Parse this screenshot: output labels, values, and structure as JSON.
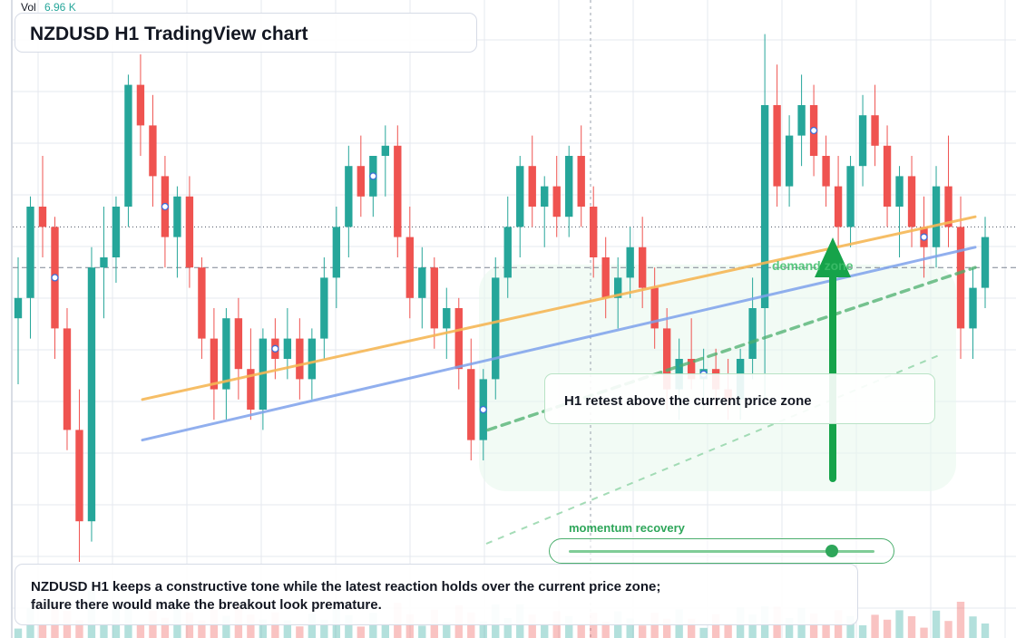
{
  "header": {
    "volume_label": "Vol",
    "volume_value": "6.96 K"
  },
  "title": "NZDUSD H1 TradingView chart",
  "annotations": {
    "retest_note": "H1 retest above the current price zone",
    "zone_label": "demand zone",
    "momentum_label": "momentum recovery",
    "summary": "NZDUSD H1 keeps a constructive tone while the latest reaction holds over the current price zone; failure there would make the breakout look premature."
  },
  "momentum_level": 0.86,
  "colors": {
    "bull": "#26a69a",
    "bear": "#ef5350",
    "trend_orange": "#f6b756",
    "trend_blue": "#7ea2ec",
    "accent_green": "#2ea65a",
    "grid": "#e6e9ef"
  },
  "icons": [
    "arrow-up-icon"
  ],
  "chart_data": {
    "type": "candlestick",
    "title": "NZDUSD H1 TradingView chart",
    "price_scale": "relative (unlabeled)",
    "ylim": [
      0,
      100
    ],
    "lines": {
      "last_price_level": 66,
      "dashed_level": 58
    },
    "candles": [
      {
        "o": 48,
        "h": 60,
        "l": 35,
        "c": 52
      },
      {
        "o": 52,
        "h": 72,
        "l": 44,
        "c": 70
      },
      {
        "o": 70,
        "h": 80,
        "l": 60,
        "c": 66
      },
      {
        "o": 66,
        "h": 68,
        "l": 40,
        "c": 46
      },
      {
        "o": 46,
        "h": 50,
        "l": 22,
        "c": 26
      },
      {
        "o": 26,
        "h": 34,
        "l": 0,
        "c": 8
      },
      {
        "o": 8,
        "h": 62,
        "l": 4,
        "c": 58
      },
      {
        "o": 58,
        "h": 70,
        "l": 48,
        "c": 60
      },
      {
        "o": 60,
        "h": 72,
        "l": 55,
        "c": 70
      },
      {
        "o": 70,
        "h": 96,
        "l": 66,
        "c": 94
      },
      {
        "o": 94,
        "h": 100,
        "l": 80,
        "c": 86
      },
      {
        "o": 86,
        "h": 92,
        "l": 70,
        "c": 76
      },
      {
        "o": 76,
        "h": 80,
        "l": 58,
        "c": 64
      },
      {
        "o": 64,
        "h": 74,
        "l": 56,
        "c": 72
      },
      {
        "o": 72,
        "h": 76,
        "l": 54,
        "c": 58
      },
      {
        "o": 58,
        "h": 60,
        "l": 40,
        "c": 44
      },
      {
        "o": 44,
        "h": 50,
        "l": 28,
        "c": 34
      },
      {
        "o": 34,
        "h": 50,
        "l": 28,
        "c": 48
      },
      {
        "o": 48,
        "h": 52,
        "l": 32,
        "c": 38
      },
      {
        "o": 38,
        "h": 46,
        "l": 28,
        "c": 30
      },
      {
        "o": 30,
        "h": 46,
        "l": 26,
        "c": 44
      },
      {
        "o": 44,
        "h": 48,
        "l": 36,
        "c": 40
      },
      {
        "o": 40,
        "h": 50,
        "l": 36,
        "c": 44
      },
      {
        "o": 44,
        "h": 48,
        "l": 32,
        "c": 36
      },
      {
        "o": 36,
        "h": 46,
        "l": 32,
        "c": 44
      },
      {
        "o": 44,
        "h": 60,
        "l": 40,
        "c": 56
      },
      {
        "o": 56,
        "h": 70,
        "l": 50,
        "c": 66
      },
      {
        "o": 66,
        "h": 82,
        "l": 60,
        "c": 78
      },
      {
        "o": 78,
        "h": 84,
        "l": 68,
        "c": 72
      },
      {
        "o": 72,
        "h": 80,
        "l": 68,
        "c": 80
      },
      {
        "o": 80,
        "h": 86,
        "l": 72,
        "c": 82
      },
      {
        "o": 82,
        "h": 86,
        "l": 60,
        "c": 64
      },
      {
        "o": 64,
        "h": 70,
        "l": 48,
        "c": 52
      },
      {
        "o": 52,
        "h": 62,
        "l": 46,
        "c": 58
      },
      {
        "o": 58,
        "h": 60,
        "l": 42,
        "c": 46
      },
      {
        "o": 46,
        "h": 54,
        "l": 40,
        "c": 50
      },
      {
        "o": 50,
        "h": 52,
        "l": 34,
        "c": 38
      },
      {
        "o": 38,
        "h": 44,
        "l": 20,
        "c": 24
      },
      {
        "o": 24,
        "h": 38,
        "l": 20,
        "c": 36
      },
      {
        "o": 36,
        "h": 60,
        "l": 32,
        "c": 56
      },
      {
        "o": 56,
        "h": 72,
        "l": 52,
        "c": 66
      },
      {
        "o": 66,
        "h": 80,
        "l": 60,
        "c": 78
      },
      {
        "o": 78,
        "h": 84,
        "l": 66,
        "c": 70
      },
      {
        "o": 70,
        "h": 76,
        "l": 62,
        "c": 74
      },
      {
        "o": 74,
        "h": 80,
        "l": 64,
        "c": 68
      },
      {
        "o": 68,
        "h": 82,
        "l": 64,
        "c": 80
      },
      {
        "o": 80,
        "h": 86,
        "l": 66,
        "c": 70
      },
      {
        "o": 70,
        "h": 74,
        "l": 56,
        "c": 60
      },
      {
        "o": 60,
        "h": 64,
        "l": 48,
        "c": 52
      },
      {
        "o": 52,
        "h": 60,
        "l": 46,
        "c": 56
      },
      {
        "o": 56,
        "h": 66,
        "l": 52,
        "c": 62
      },
      {
        "o": 62,
        "h": 68,
        "l": 50,
        "c": 54
      },
      {
        "o": 54,
        "h": 58,
        "l": 42,
        "c": 46
      },
      {
        "o": 46,
        "h": 50,
        "l": 30,
        "c": 34
      },
      {
        "o": 34,
        "h": 44,
        "l": 28,
        "c": 40
      },
      {
        "o": 40,
        "h": 48,
        "l": 34,
        "c": 36
      },
      {
        "o": 36,
        "h": 42,
        "l": 30,
        "c": 38
      },
      {
        "o": 38,
        "h": 42,
        "l": 30,
        "c": 34
      },
      {
        "o": 34,
        "h": 40,
        "l": 28,
        "c": 32
      },
      {
        "o": 32,
        "h": 42,
        "l": 28,
        "c": 40
      },
      {
        "o": 40,
        "h": 56,
        "l": 36,
        "c": 50
      },
      {
        "o": 50,
        "h": 104,
        "l": 32,
        "c": 90
      },
      {
        "o": 90,
        "h": 98,
        "l": 70,
        "c": 74
      },
      {
        "o": 74,
        "h": 88,
        "l": 70,
        "c": 84
      },
      {
        "o": 84,
        "h": 96,
        "l": 78,
        "c": 90
      },
      {
        "o": 90,
        "h": 94,
        "l": 76,
        "c": 80
      },
      {
        "o": 80,
        "h": 84,
        "l": 70,
        "c": 74
      },
      {
        "o": 74,
        "h": 80,
        "l": 62,
        "c": 66
      },
      {
        "o": 66,
        "h": 80,
        "l": 62,
        "c": 78
      },
      {
        "o": 78,
        "h": 92,
        "l": 74,
        "c": 88
      },
      {
        "o": 88,
        "h": 94,
        "l": 78,
        "c": 82
      },
      {
        "o": 82,
        "h": 86,
        "l": 66,
        "c": 70
      },
      {
        "o": 70,
        "h": 78,
        "l": 60,
        "c": 76
      },
      {
        "o": 76,
        "h": 80,
        "l": 62,
        "c": 66
      },
      {
        "o": 66,
        "h": 72,
        "l": 56,
        "c": 62
      },
      {
        "o": 62,
        "h": 78,
        "l": 58,
        "c": 74
      },
      {
        "o": 74,
        "h": 84,
        "l": 62,
        "c": 66
      },
      {
        "o": 66,
        "h": 72,
        "l": 40,
        "c": 46
      },
      {
        "o": 46,
        "h": 58,
        "l": 40,
        "c": 54
      },
      {
        "o": 54,
        "h": 68,
        "l": 50,
        "c": 64
      }
    ],
    "trendlines": [
      {
        "name": "orange trendline",
        "from": [
          0,
          32
        ],
        "to": [
          80,
          68
        ]
      },
      {
        "name": "blue trendline",
        "from": [
          0,
          24
        ],
        "to": [
          80,
          62
        ]
      },
      {
        "name": "green dashed projection",
        "from": [
          60,
          26
        ],
        "to": [
          80,
          58
        ]
      }
    ],
    "annotations": [
      "H1 retest above the current price zone",
      "demand zone",
      "momentum recovery"
    ]
  }
}
